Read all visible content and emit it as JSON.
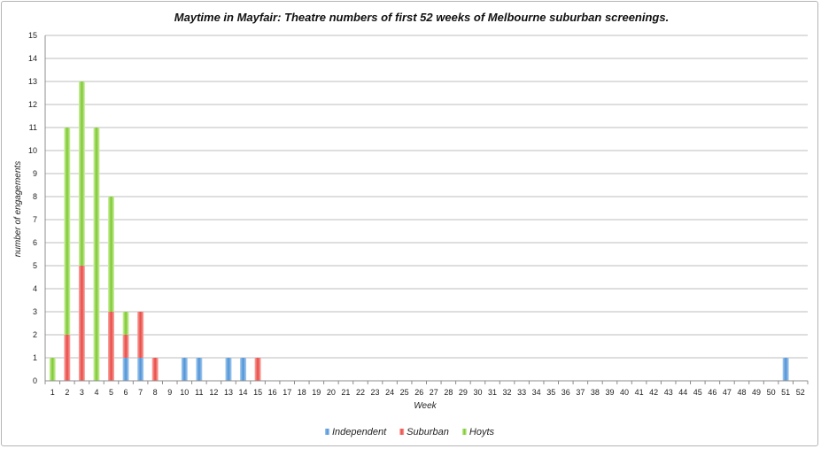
{
  "chart_data": {
    "type": "bar",
    "stacked": true,
    "title": "Maytime in Mayfair: Theatre numbers of first 52 weeks of Melbourne suburban screenings.",
    "xlabel": "Week",
    "ylabel": "number of engagements",
    "ylim": [
      0,
      15
    ],
    "grid": true,
    "legend_position": "bottom",
    "categories": [
      "1",
      "2",
      "3",
      "4",
      "5",
      "6",
      "7",
      "8",
      "9",
      "10",
      "11",
      "12",
      "13",
      "14",
      "15",
      "16",
      "17",
      "18",
      "19",
      "20",
      "21",
      "22",
      "23",
      "24",
      "25",
      "26",
      "27",
      "28",
      "29",
      "30",
      "31",
      "32",
      "33",
      "34",
      "35",
      "36",
      "37",
      "38",
      "39",
      "40",
      "41",
      "42",
      "43",
      "44",
      "45",
      "46",
      "47",
      "48",
      "49",
      "50",
      "51",
      "52"
    ],
    "series": [
      {
        "name": "Independent",
        "color": "#5b9bd5",
        "values": [
          0,
          0,
          0,
          0,
          0,
          1,
          1,
          0,
          0,
          1,
          1,
          0,
          1,
          1,
          0,
          0,
          0,
          0,
          0,
          0,
          0,
          0,
          0,
          0,
          0,
          0,
          0,
          0,
          0,
          0,
          0,
          0,
          0,
          0,
          0,
          0,
          0,
          0,
          0,
          0,
          0,
          0,
          0,
          0,
          0,
          0,
          0,
          0,
          0,
          0,
          1,
          0
        ]
      },
      {
        "name": "Suburban",
        "color": "#ee5a55",
        "values": [
          0,
          2,
          5,
          0,
          3,
          1,
          2,
          1,
          0,
          0,
          0,
          0,
          0,
          0,
          1,
          0,
          0,
          0,
          0,
          0,
          0,
          0,
          0,
          0,
          0,
          0,
          0,
          0,
          0,
          0,
          0,
          0,
          0,
          0,
          0,
          0,
          0,
          0,
          0,
          0,
          0,
          0,
          0,
          0,
          0,
          0,
          0,
          0,
          0,
          0,
          0,
          0
        ]
      },
      {
        "name": "Hoyts",
        "color": "#86d13c",
        "values": [
          1,
          9,
          8,
          11,
          5,
          1,
          0,
          0,
          0,
          0,
          0,
          0,
          0,
          0,
          0,
          0,
          0,
          0,
          0,
          0,
          0,
          0,
          0,
          0,
          0,
          0,
          0,
          0,
          0,
          0,
          0,
          0,
          0,
          0,
          0,
          0,
          0,
          0,
          0,
          0,
          0,
          0,
          0,
          0,
          0,
          0,
          0,
          0,
          0,
          0,
          0,
          0
        ]
      }
    ],
    "yticks": [
      "0",
      "1",
      "2",
      "3",
      "4",
      "5",
      "6",
      "7",
      "8",
      "9",
      "10",
      "11",
      "12",
      "13",
      "14",
      "15"
    ]
  }
}
